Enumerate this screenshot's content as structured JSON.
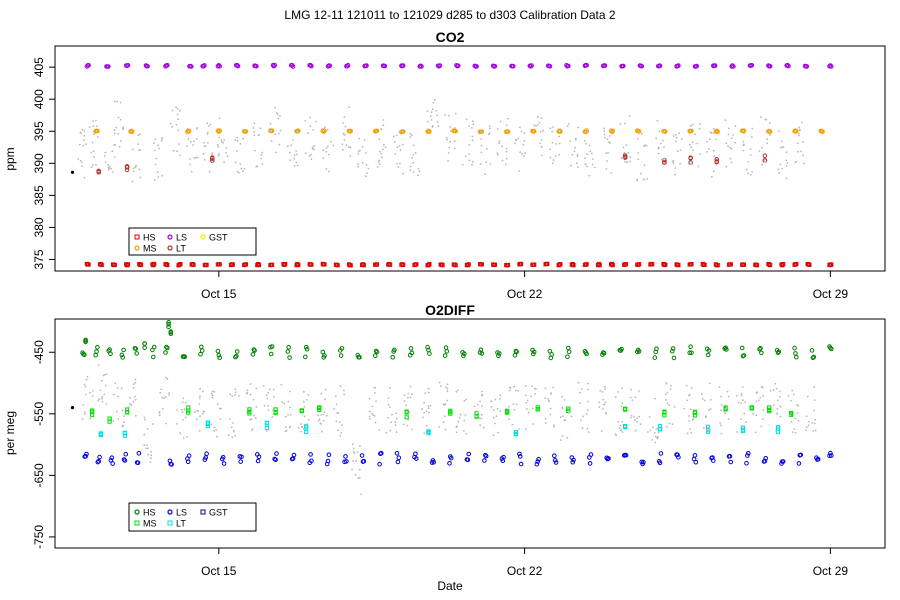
{
  "figure": {
    "title": "LMG   12-11    121011 to 121029    d285 to d303   Calibration Data 2"
  },
  "chart_data": [
    {
      "type": "scatter",
      "title": "CO2",
      "ylabel": "ppm",
      "xlabel": "",
      "x_ticks": [
        {
          "date": "2012-10-15",
          "label": "Oct 15"
        },
        {
          "date": "2012-10-22",
          "label": "Oct 22"
        },
        {
          "date": "2012-10-29",
          "label": "Oct 29"
        }
      ],
      "xlim": [
        "2012-10-11T06:00",
        "2012-10-30T06:00"
      ],
      "y_ticks": [
        375,
        380,
        385,
        390,
        395,
        400,
        405
      ],
      "ylim": [
        373.2,
        408.3
      ],
      "grid": false,
      "legend": {
        "placement": "bottom-left",
        "entries": [
          {
            "label": "HS",
            "color": "#e00000",
            "marker": "square"
          },
          {
            "label": "MS",
            "color": "#f0a000",
            "marker": "circle"
          },
          {
            "label": "LS",
            "color": "#a000e0",
            "marker": "circle"
          },
          {
            "label": "LT",
            "color": "#b03030",
            "marker": "circle"
          },
          {
            "label": "GST",
            "color": "#f0f000",
            "marker": "circle"
          }
        ]
      },
      "series": [
        {
          "key": "LS",
          "color": "#a000e0",
          "value": 405.2,
          "dates": [
            "10-12.0",
            "10-12.45",
            "10-12.9",
            "10-13.35",
            "10-13.8",
            "10-14.35",
            "10-14.65",
            "10-15.0",
            "10-15.42",
            "10-15.84",
            "10-16.26",
            "10-16.68",
            "10-17.1",
            "10-17.52",
            "10-17.94",
            "10-18.36",
            "10-18.78",
            "10-19.2",
            "10-19.62",
            "10-20.04",
            "10-20.46",
            "10-20.88",
            "10-21.3",
            "10-21.72",
            "10-22.14",
            "10-22.56",
            "10-22.98",
            "10-23.4",
            "10-23.82",
            "10-24.24",
            "10-24.66",
            "10-25.08",
            "10-25.5",
            "10-25.92",
            "10-26.34",
            "10-26.76",
            "10-27.18",
            "10-27.6",
            "10-28.02",
            "10-28.44",
            "10-29.0"
          ]
        },
        {
          "key": "MS",
          "color": "#f0a000",
          "value": 395.0,
          "dates": [
            "10-12.2",
            "10-13.0",
            "10-14.3",
            "10-15.0",
            "10-15.6",
            "10-16.2",
            "10-16.8",
            "10-17.4",
            "10-18.0",
            "10-18.6",
            "10-19.2",
            "10-19.8",
            "10-20.4",
            "10-21.0",
            "10-21.6",
            "10-22.2",
            "10-22.8",
            "10-23.4",
            "10-24.0",
            "10-24.6",
            "10-25.2",
            "10-25.8",
            "10-26.4",
            "10-27.0",
            "10-27.6",
            "10-28.2",
            "10-28.8"
          ]
        },
        {
          "key": "HS",
          "color": "#e00000",
          "value": 374.2,
          "dates": [
            "10-12.0",
            "10-12.3",
            "10-12.6",
            "10-12.9",
            "10-13.2",
            "10-13.5",
            "10-13.8",
            "10-14.1",
            "10-14.4",
            "10-14.7",
            "10-15.0",
            "10-15.3",
            "10-15.6",
            "10-15.9",
            "10-16.2",
            "10-16.5",
            "10-16.8",
            "10-17.1",
            "10-17.4",
            "10-17.7",
            "10-18.0",
            "10-18.3",
            "10-18.6",
            "10-18.9",
            "10-19.2",
            "10-19.5",
            "10-19.8",
            "10-20.1",
            "10-20.4",
            "10-20.7",
            "10-21.0",
            "10-21.3",
            "10-21.6",
            "10-21.9",
            "10-22.2",
            "10-22.5",
            "10-22.8",
            "10-23.1",
            "10-23.4",
            "10-23.7",
            "10-24.0",
            "10-24.3",
            "10-24.6",
            "10-24.9",
            "10-25.2",
            "10-25.5",
            "10-25.8",
            "10-26.1",
            "10-26.4",
            "10-26.7",
            "10-27.0",
            "10-27.3",
            "10-27.6",
            "10-27.9",
            "10-28.2",
            "10-28.5",
            "10-29.0"
          ]
        },
        {
          "key": "LT",
          "color": "#b03030",
          "points": [
            [
              "10-12.25",
              389.0
            ],
            [
              "10-12.9",
              389.0
            ],
            [
              "10-14.85",
              390.8
            ],
            [
              "10-24.3",
              391.2
            ],
            [
              "10-25.2",
              390.4
            ],
            [
              "10-25.8",
              390.6
            ],
            [
              "10-26.4",
              390.5
            ],
            [
              "10-27.5",
              390.7
            ]
          ]
        },
        {
          "key": "first",
          "color": "#000000",
          "points": [
            [
              "10-11.65",
              388.6
            ]
          ]
        },
        {
          "key": "sample",
          "color": "#b8b8b8",
          "marker": "dot",
          "clusters": [
            [
              "10-11.9",
              391.5
            ],
            [
              "10-12.15",
              393.0
            ],
            [
              "10-12.5",
              392.5
            ],
            [
              "10-12.7",
              396.0
            ],
            [
              "10-13.1",
              391.0
            ],
            [
              "10-13.6",
              390.5
            ],
            [
              "10-14.0",
              395.0
            ],
            [
              "10-14.4",
              392.0
            ],
            [
              "10-14.75",
              392.5
            ],
            [
              "10-15.1",
              393.5
            ],
            [
              "10-15.5",
              391.5
            ],
            [
              "10-15.9",
              393.0
            ],
            [
              "10-16.3",
              395.5
            ],
            [
              "10-16.7",
              392.0
            ],
            [
              "10-17.1",
              393.5
            ],
            [
              "10-17.5",
              392.5
            ],
            [
              "10-17.9",
              395.0
            ],
            [
              "10-18.3",
              391.0
            ],
            [
              "10-18.7",
              393.0
            ],
            [
              "10-19.1",
              392.0
            ],
            [
              "10-19.5",
              391.0
            ],
            [
              "10-19.9",
              396.5
            ],
            [
              "10-20.3",
              394.0
            ],
            [
              "10-20.7",
              393.5
            ],
            [
              "10-21.1",
              392.0
            ],
            [
              "10-21.5",
              393.5
            ],
            [
              "10-21.9",
              392.5
            ],
            [
              "10-22.3",
              394.5
            ],
            [
              "10-22.7",
              392.0
            ],
            [
              "10-23.1",
              393.0
            ],
            [
              "10-23.5",
              391.5
            ],
            [
              "10-23.9",
              392.0
            ],
            [
              "10-24.3",
              393.5
            ],
            [
              "10-24.7",
              391.0
            ],
            [
              "10-25.1",
              393.5
            ],
            [
              "10-25.5",
              392.0
            ],
            [
              "10-25.9",
              392.5
            ],
            [
              "10-26.3",
              391.5
            ],
            [
              "10-26.7",
              393.0
            ],
            [
              "10-27.1",
              392.0
            ],
            [
              "10-27.5",
              393.5
            ],
            [
              "10-27.9",
              391.5
            ],
            [
              "10-28.3",
              393.0
            ]
          ]
        }
      ]
    },
    {
      "type": "scatter",
      "title": "O2DIFF",
      "ylabel": "per meg",
      "xlabel": "Date",
      "x_ticks": [
        {
          "date": "2012-10-15",
          "label": "Oct 15"
        },
        {
          "date": "2012-10-22",
          "label": "Oct 22"
        },
        {
          "date": "2012-10-29",
          "label": "Oct 29"
        }
      ],
      "xlim": [
        "2012-10-11T06:00",
        "2012-10-30T06:00"
      ],
      "y_ticks": [
        -450,
        -550,
        -650,
        -750
      ],
      "ylim": [
        -768,
        -396
      ],
      "grid": false,
      "legend": {
        "placement": "bottom-left",
        "entries": [
          {
            "label": "HS",
            "color": "#008000",
            "marker": "circle"
          },
          {
            "label": "MS",
            "color": "#00e000",
            "marker": "square"
          },
          {
            "label": "LS",
            "color": "#0000e0",
            "marker": "circle"
          },
          {
            "label": "LT",
            "color": "#00e0e0",
            "marker": "square"
          },
          {
            "label": "GST",
            "color": "#000080",
            "marker": "square"
          }
        ]
      },
      "series": [
        {
          "key": "HS",
          "color": "#008000",
          "value": -450,
          "dates": [
            "10-11.9",
            "10-12.2",
            "10-12.5",
            "10-12.8",
            "10-13.1",
            "10-13.5",
            "10-13.8",
            "10-14.2",
            "10-14.6",
            "10-15.0",
            "10-15.4",
            "10-15.8",
            "10-16.2",
            "10-16.6",
            "10-17.0",
            "10-17.4",
            "10-17.8",
            "10-18.2",
            "10-18.6",
            "10-19.0",
            "10-19.4",
            "10-19.8",
            "10-20.2",
            "10-20.6",
            "10-21.0",
            "10-21.4",
            "10-21.8",
            "10-22.2",
            "10-22.6",
            "10-23.0",
            "10-23.4",
            "10-23.8",
            "10-24.2",
            "10-24.6",
            "10-25.0",
            "10-25.4",
            "10-25.8",
            "10-26.2",
            "10-26.6",
            "10-27.0",
            "10-27.4",
            "10-27.8",
            "10-28.2",
            "10-28.6",
            "10-29.0"
          ]
        },
        {
          "key": "HS-high",
          "color": "#008000",
          "points": [
            [
              "10-11.95",
              -430
            ],
            [
              "10-13.3",
              -440
            ],
            [
              "10-13.85",
              -405
            ],
            [
              "10-13.9",
              -415
            ]
          ]
        },
        {
          "key": "MS",
          "color": "#00e000",
          "points": [
            [
              "10-12.1",
              -550
            ],
            [
              "10-12.5",
              -560
            ],
            [
              "10-12.9",
              -545
            ],
            [
              "10-14.3",
              -545
            ],
            [
              "10-15.7",
              -545
            ],
            [
              "10-16.3",
              -545
            ],
            [
              "10-16.9",
              -545
            ],
            [
              "10-17.3",
              -545
            ],
            [
              "10-19.3",
              -550
            ],
            [
              "10-20.3",
              -550
            ],
            [
              "10-20.9",
              -550
            ],
            [
              "10-21.6",
              -545
            ],
            [
              "10-22.3",
              -545
            ],
            [
              "10-23.0",
              -545
            ],
            [
              "10-24.3",
              -545
            ],
            [
              "10-25.2",
              -550
            ],
            [
              "10-25.9",
              -550
            ],
            [
              "10-26.6",
              -545
            ],
            [
              "10-27.2",
              -545
            ],
            [
              "10-27.6",
              -545
            ],
            [
              "10-28.1",
              -550
            ]
          ]
        },
        {
          "key": "LT",
          "color": "#00e0e0",
          "points": [
            [
              "10-12.3",
              -580
            ],
            [
              "10-12.85",
              -585
            ],
            [
              "10-14.75",
              -565
            ],
            [
              "10-16.1",
              -570
            ],
            [
              "10-17.0",
              -575
            ],
            [
              "10-19.8",
              -580
            ],
            [
              "10-21.8",
              -580
            ],
            [
              "10-24.3",
              -570
            ],
            [
              "10-25.1",
              -570
            ],
            [
              "10-26.2",
              -575
            ],
            [
              "10-27.0",
              -575
            ],
            [
              "10-27.8",
              -575
            ]
          ]
        },
        {
          "key": "LS",
          "color": "#0000e0",
          "value": -623,
          "dates": [
            "10-11.95",
            "10-12.25",
            "10-12.55",
            "10-12.85",
            "10-13.15",
            "10-13.9",
            "10-14.3",
            "10-14.7",
            "10-15.1",
            "10-15.5",
            "10-15.9",
            "10-16.3",
            "10-16.7",
            "10-17.1",
            "10-17.5",
            "10-17.9",
            "10-18.3",
            "10-18.7",
            "10-19.1",
            "10-19.5",
            "10-19.9",
            "10-20.3",
            "10-20.7",
            "10-21.1",
            "10-21.5",
            "10-21.9",
            "10-22.3",
            "10-22.7",
            "10-23.1",
            "10-23.5",
            "10-23.9",
            "10-24.3",
            "10-24.7",
            "10-25.1",
            "10-25.5",
            "10-25.9",
            "10-26.3",
            "10-26.7",
            "10-27.1",
            "10-27.5",
            "10-27.9",
            "10-28.3",
            "10-28.7",
            "10-29.0"
          ]
        },
        {
          "key": "first",
          "color": "#000000",
          "points": [
            [
              "10-11.65",
              -540
            ]
          ]
        },
        {
          "key": "sample",
          "color": "#b8b8b8",
          "marker": "dot",
          "clusters": [
            [
              "10-12.0",
              -520
            ],
            [
              "10-12.35",
              -500
            ],
            [
              "10-12.7",
              -530
            ],
            [
              "10-13.0",
              -530
            ],
            [
              "10-13.4",
              -590
            ],
            [
              "10-13.75",
              -530
            ],
            [
              "10-14.15",
              -560
            ],
            [
              "10-14.55",
              -540
            ],
            [
              "10-14.95",
              -550
            ],
            [
              "10-15.35",
              -550
            ],
            [
              "10-15.75",
              -540
            ],
            [
              "10-16.15",
              -545
            ],
            [
              "10-16.55",
              -540
            ],
            [
              "10-16.95",
              -550
            ],
            [
              "10-17.35",
              -545
            ],
            [
              "10-17.75",
              -545
            ],
            [
              "10-18.15",
              -640
            ],
            [
              "10-18.55",
              -540
            ],
            [
              "10-18.95",
              -545
            ],
            [
              "10-19.35",
              -540
            ],
            [
              "10-19.75",
              -545
            ],
            [
              "10-20.15",
              -540
            ],
            [
              "10-20.55",
              -545
            ],
            [
              "10-20.95",
              -540
            ],
            [
              "10-21.35",
              -545
            ],
            [
              "10-21.75",
              -540
            ],
            [
              "10-22.15",
              -545
            ],
            [
              "10-22.55",
              -540
            ],
            [
              "10-22.95",
              -560
            ],
            [
              "10-23.35",
              -540
            ],
            [
              "10-23.75",
              -545
            ],
            [
              "10-24.15",
              -545
            ],
            [
              "10-24.55",
              -540
            ],
            [
              "10-24.95",
              -560
            ],
            [
              "10-25.35",
              -540
            ],
            [
              "10-25.75",
              -545
            ],
            [
              "10-26.15",
              -540
            ],
            [
              "10-26.55",
              -545
            ],
            [
              "10-26.95",
              -540
            ],
            [
              "10-27.35",
              -545
            ],
            [
              "10-27.75",
              -540
            ],
            [
              "10-28.15",
              -545
            ],
            [
              "10-28.55",
              -540
            ]
          ]
        }
      ]
    }
  ]
}
